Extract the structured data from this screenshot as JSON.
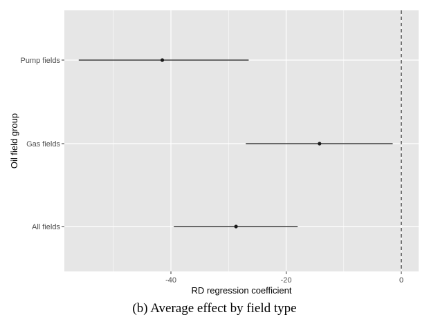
{
  "caption": "(b) Average effect by field type",
  "chart_data": {
    "type": "scatter",
    "subtype": "coefficient-plot",
    "title": "",
    "xlabel": "RD regression coefficient",
    "ylabel": "Oil field group",
    "xlim": [
      -58.5,
      3
    ],
    "x_ticks": [
      -40,
      -20,
      0
    ],
    "categories": [
      "Pump fields",
      "Gas fields",
      "All fields"
    ],
    "points": [
      {
        "group": "Pump fields",
        "estimate": -41.5,
        "lower": -56.0,
        "upper": -26.5
      },
      {
        "group": "Gas fields",
        "estimate": -14.2,
        "lower": -27.0,
        "upper": -1.5
      },
      {
        "group": "All fields",
        "estimate": -28.7,
        "lower": -39.5,
        "upper": -18.0
      }
    ],
    "reference_line": {
      "x": 0,
      "style": "dashed"
    },
    "grid": true,
    "panel_background": "#e6e6e6",
    "grid_color": "#ffffff",
    "point_color": "#1a1a1a"
  }
}
